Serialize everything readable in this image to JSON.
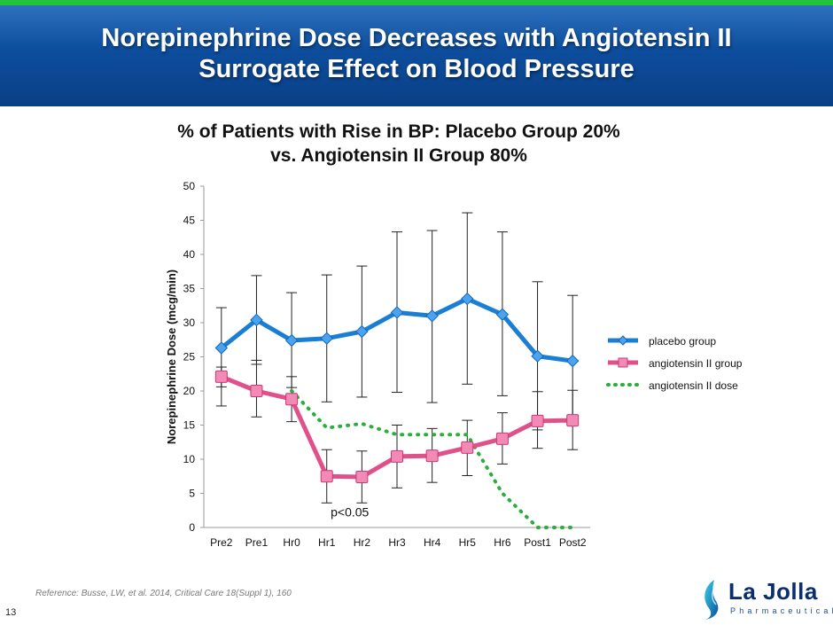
{
  "header": {
    "title_line1": "Norepinephrine Dose Decreases with Angiotensin II",
    "title_line2": "Surrogate Effect on Blood Pressure"
  },
  "chart_heading": {
    "line1": "% of Patients with Rise in BP: Placebo Group 20%",
    "line2": "vs. Angiotensin II Group 80%"
  },
  "footer": {
    "reference": "Reference: Busse, LW, et al. 2014, Critical Care 18(Suppl 1), 160",
    "page_number": "13"
  },
  "logo": {
    "name": "La Jolla",
    "sub": "Pharmaceutical"
  },
  "colors": {
    "placebo": "#1a7fd4",
    "angiotensin_group": "#e0508a",
    "angiotensin_dose": "#2cae3c",
    "header_green": "#22c33b"
  },
  "chart_data": {
    "type": "line",
    "ylabel": "Norepinephrine Dose (mcg/min)",
    "xlabel": "",
    "ylim": [
      0,
      50
    ],
    "yticks": [
      0,
      5,
      10,
      15,
      20,
      25,
      30,
      35,
      40,
      45,
      50
    ],
    "categories": [
      "Pre2",
      "Pre1",
      "Hr0",
      "Hr1",
      "Hr2",
      "Hr3",
      "Hr4",
      "Hr5",
      "Hr6",
      "Post1",
      "Post2"
    ],
    "annotation": "p<0.05",
    "legend_position": "right",
    "series": [
      {
        "name": "placebo group",
        "values": [
          26.3,
          30.4,
          27.4,
          27.7,
          28.7,
          31.5,
          31.0,
          33.5,
          31.2,
          25.1,
          24.4
        ],
        "err_high": [
          32.2,
          36.9,
          34.4,
          37.0,
          38.3,
          43.3,
          43.5,
          46.1,
          43.3,
          36.0,
          34.0
        ],
        "err_low": [
          20.6,
          23.9,
          20.5,
          18.4,
          19.1,
          19.8,
          18.3,
          21.0,
          19.3,
          14.3,
          15.0
        ],
        "style": "line-diamond"
      },
      {
        "name": "angiotensin II group",
        "values": [
          22.1,
          20.0,
          18.8,
          7.5,
          7.4,
          10.4,
          10.5,
          11.7,
          13.0,
          15.6,
          15.7
        ],
        "err_high": [
          23.5,
          24.5,
          22.1,
          11.4,
          11.2,
          15.0,
          14.5,
          15.7,
          16.8,
          19.9,
          20.1
        ],
        "err_low": [
          17.8,
          16.2,
          15.5,
          3.6,
          3.6,
          5.8,
          6.6,
          7.6,
          9.3,
          11.6,
          11.4
        ],
        "style": "line-square"
      },
      {
        "name": "angiotensin II dose",
        "values": [
          null,
          null,
          20.0,
          14.6,
          15.2,
          13.6,
          13.6,
          13.6,
          5.0,
          0.0,
          0.0
        ],
        "style": "dotted"
      }
    ]
  }
}
